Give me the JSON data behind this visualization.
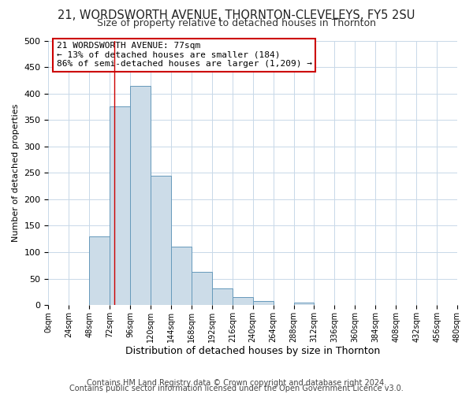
{
  "title": "21, WORDSWORTH AVENUE, THORNTON-CLEVELEYS, FY5 2SU",
  "subtitle": "Size of property relative to detached houses in Thornton",
  "xlabel": "Distribution of detached houses by size in Thornton",
  "ylabel": "Number of detached properties",
  "bin_edges": [
    0,
    24,
    48,
    72,
    96,
    120,
    144,
    168,
    192,
    216,
    240,
    264,
    288,
    312,
    336,
    360,
    384,
    408,
    432,
    456,
    480
  ],
  "bar_heights": [
    0,
    0,
    130,
    375,
    415,
    245,
    110,
    63,
    32,
    15,
    7,
    0,
    5,
    0,
    0,
    0,
    0,
    0,
    0,
    0
  ],
  "bar_color": "#ccdce8",
  "bar_edge_color": "#6699bb",
  "property_size": 77,
  "vline_color": "#cc0000",
  "annotation_title": "21 WORDSWORTH AVENUE: 77sqm",
  "annotation_line2": "← 13% of detached houses are smaller (184)",
  "annotation_line3": "86% of semi-detached houses are larger (1,209) →",
  "annotation_box_edge": "#cc0000",
  "ylim": [
    0,
    500
  ],
  "yticks": [
    0,
    50,
    100,
    150,
    200,
    250,
    300,
    350,
    400,
    450,
    500
  ],
  "xtick_labels": [
    "0sqm",
    "24sqm",
    "48sqm",
    "72sqm",
    "96sqm",
    "120sqm",
    "144sqm",
    "168sqm",
    "192sqm",
    "216sqm",
    "240sqm",
    "264sqm",
    "288sqm",
    "312sqm",
    "336sqm",
    "360sqm",
    "384sqm",
    "408sqm",
    "432sqm",
    "456sqm",
    "480sqm"
  ],
  "footnote1": "Contains HM Land Registry data © Crown copyright and database right 2024.",
  "footnote2": "Contains public sector information licensed under the Open Government Licence v3.0.",
  "background_color": "#ffffff",
  "grid_color": "#c8d8e8"
}
